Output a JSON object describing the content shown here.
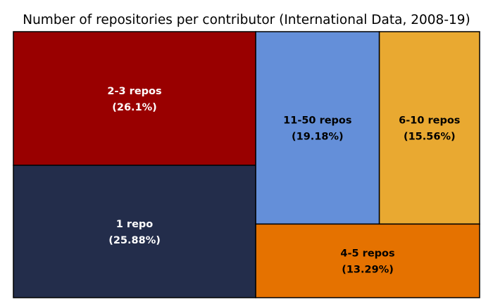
{
  "chart_data": {
    "type": "treemap",
    "title": "Number of repositories per contributor (International Data, 2008-19)",
    "tiles": [
      {
        "label": "2-3 repos",
        "value_label": "(26.1%)",
        "value": 26.1,
        "color": "#990000",
        "text_color": "#ffffff"
      },
      {
        "label": "1 repo",
        "value_label": "(25.88%)",
        "value": 25.88,
        "color": "#232d4b",
        "text_color": "#ffffff"
      },
      {
        "label": "11-50 repos",
        "value_label": "(19.18%)",
        "value": 19.18,
        "color": "#648fd9",
        "text_color": "#000000"
      },
      {
        "label": "6-10 repos",
        "value_label": "(15.56%)",
        "value": 15.56,
        "color": "#e9a931",
        "text_color": "#000000"
      },
      {
        "label": "4-5 repos",
        "value_label": "(13.29%)",
        "value": 13.29,
        "color": "#e57200",
        "text_color": "#000000"
      }
    ]
  }
}
